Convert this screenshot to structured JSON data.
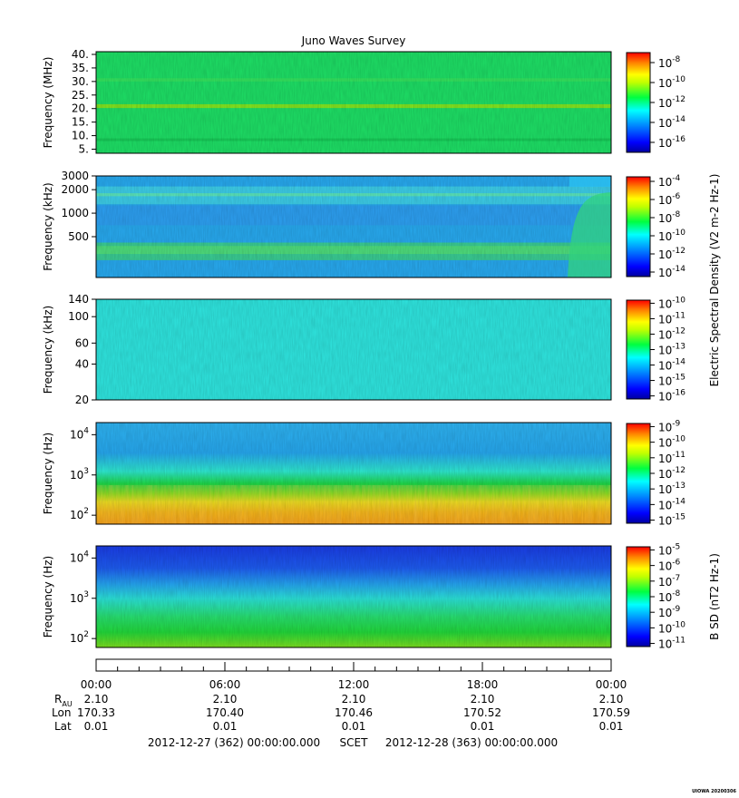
{
  "chart_data": {
    "type": "heatmap",
    "title": "Juno Waves Survey",
    "watermark": "UIOWA 20200306",
    "time_axis": {
      "tick_labels": [
        "00:00",
        "06:00",
        "12:00",
        "18:00",
        "00:00"
      ],
      "hours": [
        0,
        6,
        12,
        18,
        24
      ],
      "range_hours": [
        0,
        24
      ]
    },
    "ephemeris": {
      "R_AU": {
        "label_main": "R",
        "label_sub": "AU",
        "values": [
          "2.10",
          "2.10",
          "2.10",
          "2.10",
          "2.10"
        ]
      },
      "Lon": {
        "label": "Lon",
        "values": [
          "170.33",
          "170.40",
          "170.46",
          "170.52",
          "170.59"
        ]
      },
      "Lat": {
        "label": "Lat",
        "values": [
          "0.01",
          "0.01",
          "0.01",
          "0.01",
          "0.01"
        ]
      }
    },
    "footer": {
      "start": "2012-12-27 (362) 00:00:00.000",
      "scet": "SCET",
      "end": "2012-12-28 (363) 00:00:00.000"
    },
    "shared_colorbar_label": "Electric Spectral Density (V2 m-2 Hz-1)",
    "panels": [
      {
        "name": "HFR high",
        "ylabel": "Frequency (MHz)",
        "yscale": "linear",
        "ylim": [
          3.5,
          41
        ],
        "yticks": [
          {
            "v": 40,
            "label": "40."
          },
          {
            "v": 35,
            "label": "35."
          },
          {
            "v": 30,
            "label": "30."
          },
          {
            "v": 25,
            "label": "25."
          },
          {
            "v": 20,
            "label": "20."
          },
          {
            "v": 15,
            "label": "15."
          },
          {
            "v": 10,
            "label": "10."
          },
          {
            "v": 5,
            "label": "5."
          }
        ],
        "colorbar": {
          "exponents": [
            -8,
            -10,
            -12,
            -14,
            -16
          ],
          "range": [
            -17,
            -7
          ]
        },
        "background": "#1ee066",
        "bands": [
          {
            "fmin": 20.2,
            "fmax": 21.6,
            "color": "#8ee61a"
          },
          {
            "fmin": 8.0,
            "fmax": 9.0,
            "color": "#16c956"
          },
          {
            "fmin": 30.0,
            "fmax": 31.2,
            "color": "#36e45e"
          }
        ]
      },
      {
        "name": "HFR low",
        "ylabel": "Frequency (kHz)",
        "yscale": "log",
        "ylim": [
          150,
          3000
        ],
        "yticks": [
          {
            "v": 3000,
            "label": "3000"
          },
          {
            "v": 2000,
            "label": "2000"
          },
          {
            "v": 1000,
            "label": "1000"
          },
          {
            "v": 500,
            "label": "500"
          }
        ],
        "colorbar": {
          "exponents": [
            -4,
            -6,
            -8,
            -10,
            -12,
            -14
          ],
          "range": [
            -14.5,
            -3.5
          ]
        },
        "background": "#28aaf0",
        "bands": [
          {
            "fmin": 1300,
            "fmax": 2200,
            "color": "#3fd2e8"
          },
          {
            "fmin": 1650,
            "fmax": 1800,
            "color": "#5ee8b8"
          },
          {
            "fmin": 700,
            "fmax": 1250,
            "color": "#2d9ef2"
          },
          {
            "fmin": 250,
            "fmax": 420,
            "color": "#3ccf8a"
          },
          {
            "fmin": 300,
            "fmax": 380,
            "color": "#52e07a"
          }
        ]
      },
      {
        "name": "LFR high",
        "ylabel": "Frequency (kHz)",
        "yscale": "log",
        "ylim": [
          20,
          140
        ],
        "yticks": [
          {
            "v": 140,
            "label": "140"
          },
          {
            "v": 100,
            "label": "100"
          },
          {
            "v": 60,
            "label": "60"
          },
          {
            "v": 40,
            "label": "40"
          },
          {
            "v": 20,
            "label": "20"
          }
        ],
        "colorbar": {
          "exponents": [
            -10,
            -11,
            -12,
            -13,
            -14,
            -15,
            -16
          ],
          "range": [
            -16.2,
            -9.8
          ]
        },
        "background": "#2fe6e0",
        "bands": []
      },
      {
        "name": "LFR low",
        "ylabel": "Frequency (Hz)",
        "yscale": "log",
        "ylim": [
          60,
          20000
        ],
        "yticks": [
          {
            "v": 10000,
            "base": "10",
            "exp": "4"
          },
          {
            "v": 1000,
            "base": "10",
            "exp": "3"
          },
          {
            "v": 100,
            "base": "10",
            "exp": "2"
          }
        ],
        "colorbar": {
          "exponents": [
            -9,
            -10,
            -11,
            -12,
            -13,
            -14,
            -15
          ],
          "range": [
            -15.2,
            -8.8
          ]
        },
        "gradient": [
          {
            "at": 0.0,
            "color": "#2fb4f2"
          },
          {
            "at": 0.3,
            "color": "#26a8ef"
          },
          {
            "at": 0.48,
            "color": "#2ee8d0"
          },
          {
            "at": 0.6,
            "color": "#1ed84a"
          },
          {
            "at": 0.7,
            "color": "#7ee01a"
          },
          {
            "at": 0.78,
            "color": "#e8e016"
          },
          {
            "at": 0.88,
            "color": "#f4b410"
          },
          {
            "at": 1.0,
            "color": "#f49a12"
          }
        ]
      },
      {
        "name": "Magnetic",
        "ylabel": "Frequency (Hz)",
        "yscale": "log",
        "ylim": [
          60,
          20000
        ],
        "yticks": [
          {
            "v": 10000,
            "base": "10",
            "exp": "4"
          },
          {
            "v": 1000,
            "base": "10",
            "exp": "3"
          },
          {
            "v": 100,
            "base": "10",
            "exp": "2"
          }
        ],
        "colorbar": {
          "exponents": [
            -5,
            -6,
            -7,
            -8,
            -9,
            -10,
            -11
          ],
          "range": [
            -11.2,
            -4.8
          ]
        },
        "colorbar_label": "B SD (nT2 Hz-1)",
        "gradient": [
          {
            "at": 0.0,
            "color": "#1a3ce6"
          },
          {
            "at": 0.22,
            "color": "#1e5cf0"
          },
          {
            "at": 0.38,
            "color": "#25a6f0"
          },
          {
            "at": 0.52,
            "color": "#2be2d8"
          },
          {
            "at": 0.7,
            "color": "#28e070"
          },
          {
            "at": 0.85,
            "color": "#22d83a"
          },
          {
            "at": 1.0,
            "color": "#7ee020"
          }
        ]
      }
    ]
  }
}
